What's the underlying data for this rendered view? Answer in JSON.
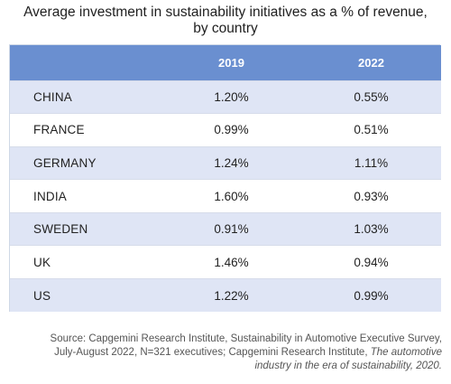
{
  "chart_data": {
    "type": "table",
    "title_line1": "Average investment in sustainability initiatives as a % of revenue,",
    "title_line2": "by country",
    "columns": [
      "",
      "2019",
      "2022"
    ],
    "rows": [
      {
        "country": "CHINA",
        "v2019": "1.20%",
        "v2022": "0.55%"
      },
      {
        "country": "FRANCE",
        "v2019": "0.99%",
        "v2022": "0.51%"
      },
      {
        "country": "GERMANY",
        "v2019": "1.24%",
        "v2022": "1.11%"
      },
      {
        "country": "INDIA",
        "v2019": "1.60%",
        "v2022": "0.93%"
      },
      {
        "country": "SWEDEN",
        "v2019": "0.91%",
        "v2022": "1.03%"
      },
      {
        "country": "UK",
        "v2019": "1.46%",
        "v2022": "0.94%"
      },
      {
        "country": "US",
        "v2019": "1.22%",
        "v2022": "0.99%"
      }
    ],
    "colors": {
      "header_bg": "#6a8fd0",
      "header_text": "#ffffff",
      "stripe_row": "#dfe5f5",
      "plain_row": "#ffffff"
    }
  },
  "source": {
    "line1": "Source: Capgemini Research Institute, Sustainability in Automotive Executive Survey,",
    "line2": "July-August 2022, N=321 executives; Capgemini Research Institute,",
    "line2_italic": "The automotive",
    "line3_italic": "industry in the era of sustainability, 2020."
  }
}
